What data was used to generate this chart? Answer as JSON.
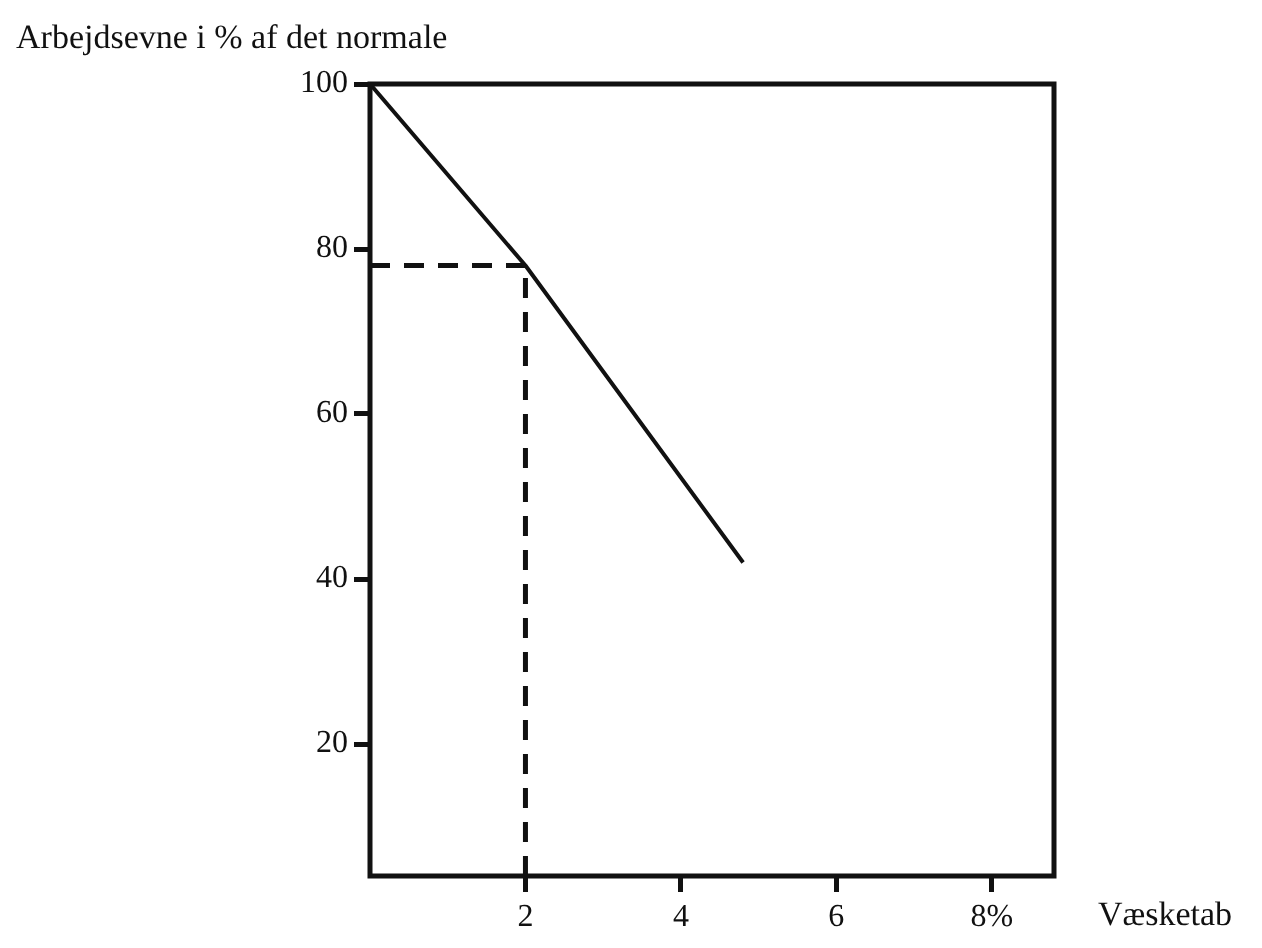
{
  "chart_data": {
    "type": "line",
    "ylabel": "Arbejdsevne i % af det normale",
    "xlabel": "Væsketab",
    "x": [
      0,
      2,
      4.8
    ],
    "series": [
      {
        "color": "#111111",
        "values": [
          100,
          78,
          42
        ]
      }
    ],
    "xlim": [
      0,
      8.8
    ],
    "xticks": [
      2,
      4,
      6,
      {
        "value": 8,
        "label": "8%"
      }
    ],
    "ylim": [
      4,
      100
    ],
    "yticks": [
      20,
      40,
      60,
      80,
      100
    ],
    "legend": false,
    "marker": "none",
    "line_style": "solid",
    "ref_lines": [
      {
        "axis": "x",
        "value": 2,
        "line_style": "dashed",
        "color": "#111111"
      },
      {
        "axis": "y",
        "value": 78,
        "line_style": "dashed",
        "color": "#111111"
      }
    ]
  }
}
